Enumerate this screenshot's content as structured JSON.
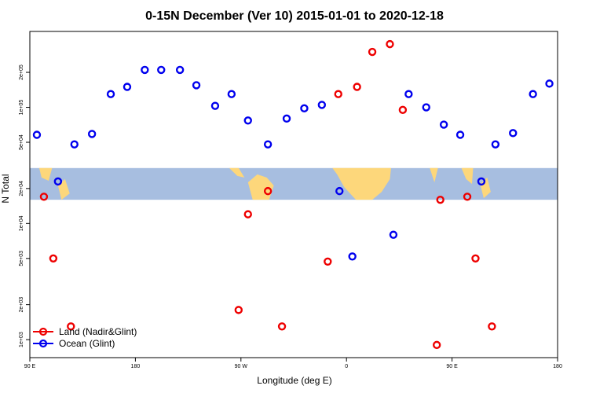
{
  "chart_data": {
    "type": "scatter",
    "title": "0-15N December (Ver 10)   2015-01-01 to 2020-12-18",
    "xlabel": "Longitude (deg E)",
    "ylabel": "N Total",
    "x_axis": {
      "start_lon": 90,
      "span_deg": 360,
      "ticks": [
        {
          "label": "90 E",
          "offset": 0
        },
        {
          "label": "180",
          "offset": 90
        },
        {
          "label": "90 W",
          "offset": 180
        },
        {
          "label": "0",
          "offset": 270
        },
        {
          "label": "90 E",
          "offset": 360
        },
        {
          "label": "180",
          "offset": 450
        }
      ],
      "xlim": [
        0,
        450
      ]
    },
    "y_axis": {
      "scale": "log",
      "ylim": [
        700,
        450000
      ],
      "ticks": [
        {
          "label": "1e+03",
          "value": 1000
        },
        {
          "label": "2e+03",
          "value": 2000
        },
        {
          "label": "5e+03",
          "value": 5000
        },
        {
          "label": "1e+04",
          "value": 10000
        },
        {
          "label": "2e+04",
          "value": 20000
        },
        {
          "label": "5e+04",
          "value": 50000
        },
        {
          "label": "1e+05",
          "value": 100000
        },
        {
          "label": "2e+05",
          "value": 200000
        }
      ]
    },
    "map_band": {
      "y_top": 30000,
      "y_bottom": 16000,
      "ocean_color": "#a7bee0",
      "land_color": "#fdd77b"
    },
    "series": [
      {
        "name": "Land (Nadir&Glint)",
        "color": "#ee0000",
        "points": [
          [
            12,
            17000
          ],
          [
            20,
            5000
          ],
          [
            35,
            1300
          ],
          [
            178,
            1800
          ],
          [
            186,
            12000
          ],
          [
            203,
            19000
          ],
          [
            215,
            1300
          ],
          [
            254,
            4700
          ],
          [
            263,
            130000
          ],
          [
            279,
            150000
          ],
          [
            292,
            300000
          ],
          [
            307,
            350000
          ],
          [
            318,
            95000
          ],
          [
            347,
            900
          ],
          [
            350,
            16000
          ],
          [
            373,
            17000
          ],
          [
            380,
            5000
          ],
          [
            394,
            1300
          ]
        ]
      },
      {
        "name": "Ocean (Glint)",
        "color": "#0000ee",
        "points": [
          [
            6,
            58000
          ],
          [
            24,
            23000
          ],
          [
            38,
            48000
          ],
          [
            53,
            59000
          ],
          [
            69,
            130000
          ],
          [
            83,
            150000
          ],
          [
            98,
            210000
          ],
          [
            112,
            210000
          ],
          [
            128,
            210000
          ],
          [
            142,
            155000
          ],
          [
            158,
            103000
          ],
          [
            172,
            130000
          ],
          [
            186,
            77000
          ],
          [
            203,
            48000
          ],
          [
            219,
            80000
          ],
          [
            234,
            98000
          ],
          [
            249,
            105000
          ],
          [
            264,
            19000
          ],
          [
            275,
            5200
          ],
          [
            310,
            8000
          ],
          [
            323,
            130000
          ],
          [
            338,
            100000
          ],
          [
            353,
            71000
          ],
          [
            367,
            58000
          ],
          [
            385,
            23000
          ],
          [
            397,
            48000
          ],
          [
            412,
            60000
          ],
          [
            429,
            130000
          ],
          [
            443,
            160000
          ]
        ]
      }
    ],
    "legend": {
      "position": "bottom-left",
      "entries": [
        {
          "label": "Land (Nadir&Glint)",
          "color": "#ee0000"
        },
        {
          "label": "Ocean (Glint)",
          "color": "#0000ee"
        }
      ]
    }
  }
}
